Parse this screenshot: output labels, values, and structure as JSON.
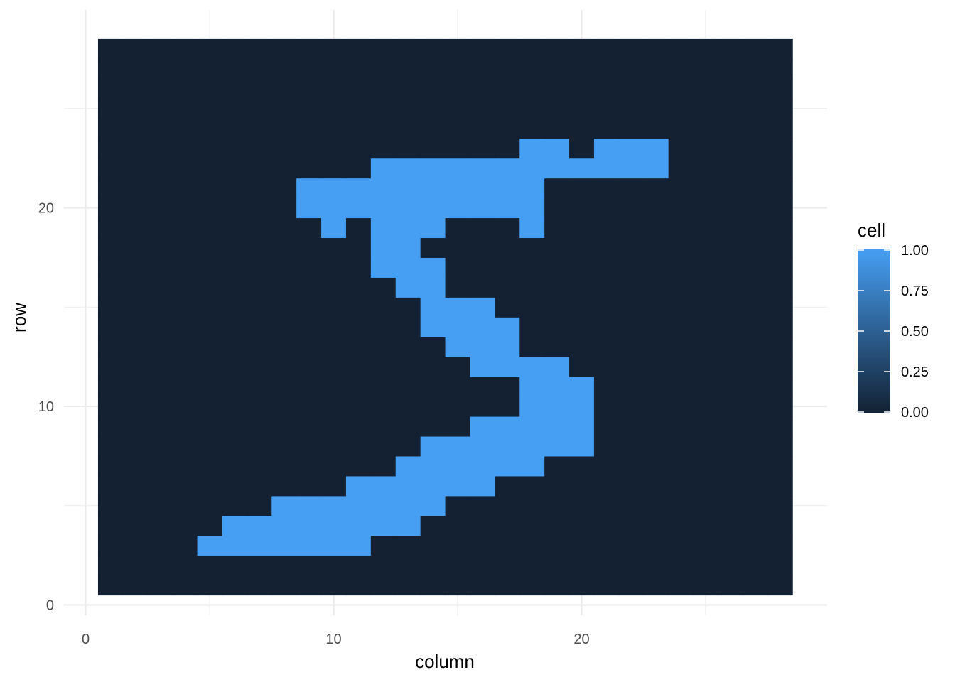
{
  "chart_data": {
    "type": "heatmap",
    "title": "",
    "xlabel": "column",
    "ylabel": "row",
    "xlim": [
      0,
      29
    ],
    "ylim": [
      0,
      29
    ],
    "x_major_ticks": [
      0,
      10,
      20
    ],
    "y_major_ticks": [
      0,
      10,
      20
    ],
    "x_tick_labels": [
      "0",
      "10",
      "20"
    ],
    "y_tick_labels": [
      "0",
      "10",
      "20"
    ],
    "grid": true,
    "grid_color": "#ebebeb",
    "fill_range": {
      "columns": [
        1,
        28
      ],
      "rows": [
        1,
        28
      ]
    },
    "value_colors": {
      "low": "#132132",
      "high": "#469ff3"
    },
    "note_cells": "all cells have value 0 except those listed in high_cells, which have value 1",
    "high_cells": [
      {
        "row": 23,
        "columns": [
          18,
          19,
          21,
          22,
          23
        ]
      },
      {
        "row": 22,
        "columns": [
          12,
          13,
          14,
          15,
          16,
          17,
          18,
          19,
          20,
          21,
          22,
          23
        ]
      },
      {
        "row": 21,
        "columns": [
          9,
          10,
          11,
          12,
          13,
          14,
          15,
          16,
          17,
          18
        ]
      },
      {
        "row": 20,
        "columns": [
          9,
          10,
          11,
          12,
          13,
          14,
          15,
          16,
          17,
          18
        ]
      },
      {
        "row": 19,
        "columns": [
          10,
          12,
          13,
          14,
          18
        ]
      },
      {
        "row": 18,
        "columns": [
          12,
          13
        ]
      },
      {
        "row": 17,
        "columns": [
          12,
          13,
          14
        ]
      },
      {
        "row": 16,
        "columns": [
          13,
          14
        ]
      },
      {
        "row": 15,
        "columns": [
          14,
          15,
          16
        ]
      },
      {
        "row": 14,
        "columns": [
          14,
          15,
          16,
          17
        ]
      },
      {
        "row": 13,
        "columns": [
          15,
          16,
          17
        ]
      },
      {
        "row": 12,
        "columns": [
          16,
          17,
          18,
          19
        ]
      },
      {
        "row": 11,
        "columns": [
          18,
          19,
          20
        ]
      },
      {
        "row": 10,
        "columns": [
          18,
          19,
          20
        ]
      },
      {
        "row": 9,
        "columns": [
          16,
          17,
          18,
          19,
          20
        ]
      },
      {
        "row": 8,
        "columns": [
          14,
          15,
          16,
          17,
          18,
          19,
          20
        ]
      },
      {
        "row": 7,
        "columns": [
          13,
          14,
          15,
          16,
          17,
          18
        ]
      },
      {
        "row": 6,
        "columns": [
          11,
          12,
          13,
          14,
          15,
          16
        ]
      },
      {
        "row": 5,
        "columns": [
          8,
          9,
          10,
          11,
          12,
          13,
          14
        ]
      },
      {
        "row": 4,
        "columns": [
          6,
          7,
          8,
          9,
          10,
          11,
          12,
          13
        ]
      },
      {
        "row": 3,
        "columns": [
          5,
          6,
          7,
          8,
          9,
          10,
          11
        ]
      }
    ],
    "legend": {
      "title": "cell",
      "position": "right",
      "range": [
        0,
        1
      ],
      "breaks": [
        0,
        0.25,
        0.5,
        0.75,
        1
      ],
      "labels": [
        "0.00",
        "0.25",
        "0.50",
        "0.75",
        "1.00"
      ]
    }
  }
}
